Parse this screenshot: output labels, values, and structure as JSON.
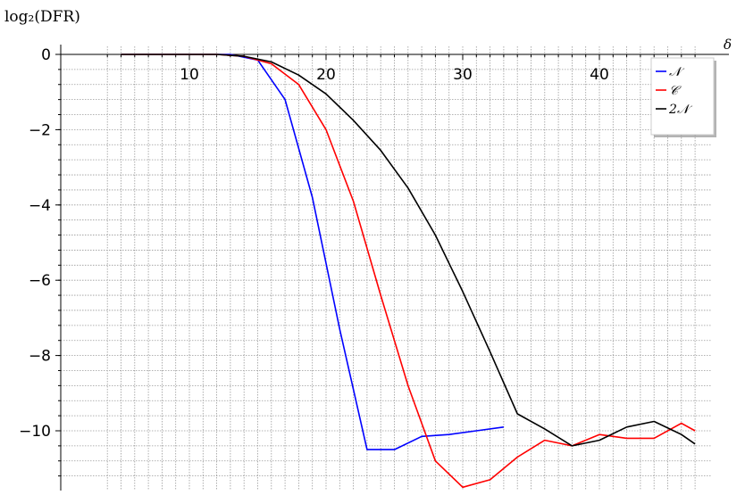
{
  "chart_data": {
    "type": "line",
    "ylabel": "log₂(DFR)",
    "xlabel": "δ",
    "xlim": [
      4,
      47
    ],
    "ylim": [
      -11.7,
      0.3
    ],
    "x_ticks": [
      10,
      20,
      30,
      40
    ],
    "y_ticks": [
      0,
      -2,
      -4,
      -6,
      -8,
      -10
    ],
    "x_minor_step": 1,
    "y_minor_step": 0.4,
    "grid": true,
    "grid_style": "dotted",
    "legend_position": "top-right",
    "series": [
      {
        "name": "𝒩",
        "color": "#0000ff",
        "x": [
          5,
          7,
          9,
          11,
          13,
          15,
          17,
          19,
          21,
          23,
          25,
          27,
          29,
          31,
          33
        ],
        "y": [
          0,
          0,
          0,
          0,
          0,
          -0.15,
          -1.2,
          -3.8,
          -7.3,
          -10.5,
          -10.5,
          -10.15,
          -10.1,
          -10.0,
          -9.9
        ]
      },
      {
        "name": "𝒞",
        "color": "#ff0000",
        "x": [
          5,
          8,
          10,
          12,
          14,
          16,
          18,
          20,
          22,
          24,
          26,
          28,
          30,
          32,
          34,
          36,
          38,
          40,
          42,
          44,
          46,
          47
        ],
        "y": [
          0,
          0,
          0,
          0,
          -0.05,
          -0.25,
          -0.8,
          -2.0,
          -3.9,
          -6.4,
          -8.8,
          -10.8,
          -11.5,
          -11.3,
          -10.7,
          -10.25,
          -10.4,
          -10.1,
          -10.2,
          -10.2,
          -9.8,
          -10.0
        ]
      },
      {
        "name": "2𝒩",
        "color": "#000000",
        "x": [
          5,
          8,
          10,
          12,
          14,
          16,
          18,
          20,
          22,
          24,
          26,
          28,
          30,
          32,
          34,
          36,
          38,
          40,
          42,
          44,
          46,
          47
        ],
        "y": [
          0,
          0,
          0,
          0,
          -0.05,
          -0.2,
          -0.55,
          -1.05,
          -1.75,
          -2.55,
          -3.55,
          -4.8,
          -6.3,
          -7.9,
          -9.55,
          -9.95,
          -10.4,
          -10.25,
          -9.9,
          -9.75,
          -10.1,
          -10.35
        ]
      }
    ]
  }
}
